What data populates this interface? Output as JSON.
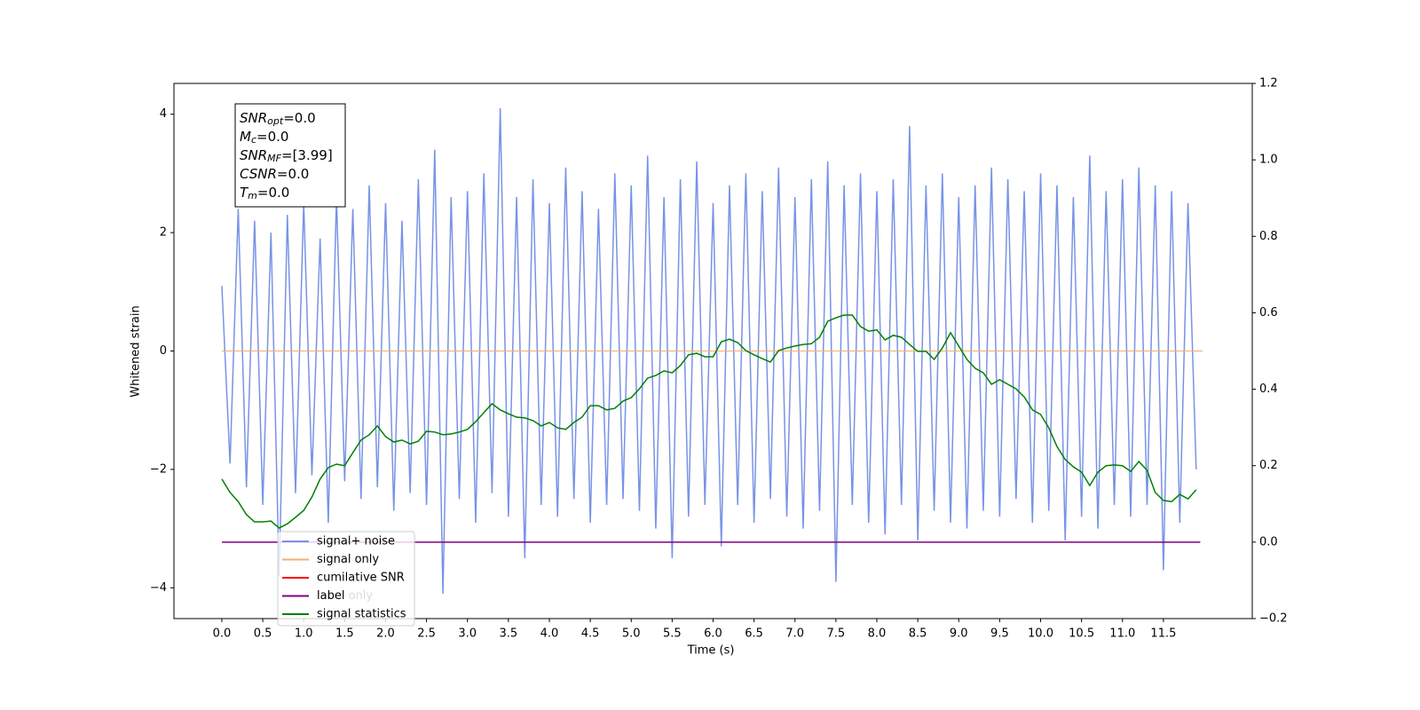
{
  "chart_data": {
    "type": "line",
    "xlabel": "Time (s)",
    "ylabel": "Whitened strain",
    "xlim": [
      -0.585,
      12.585
    ],
    "ylim": [
      -4.52,
      4.52
    ],
    "y2lim": [
      -0.2,
      1.2
    ],
    "xticks": [
      {
        "value": 0,
        "label": "0.0"
      },
      0.5,
      {
        "value": 1,
        "label": "1.0"
      },
      1.5,
      {
        "value": 2,
        "label": "2.0"
      },
      2.5,
      {
        "value": 3,
        "label": "3.0"
      },
      3.5,
      {
        "value": 4,
        "label": "4.0"
      },
      4.5,
      {
        "value": 5,
        "label": "5.0"
      },
      5.5,
      {
        "value": 6,
        "label": "6.0"
      },
      6.5,
      {
        "value": 7,
        "label": "7.0"
      },
      7.5,
      {
        "value": 8,
        "label": "8.0"
      },
      8.5,
      {
        "value": 9,
        "label": "9.0"
      },
      9.5,
      {
        "value": 10,
        "label": "10.0"
      },
      10.5,
      {
        "value": 11,
        "label": "11.0"
      },
      11.5
    ],
    "yticks": [
      {
        "value": -4,
        "label": "−4"
      },
      {
        "value": -2,
        "label": "−2"
      },
      0,
      2,
      4
    ],
    "y2ticks": [
      {
        "value": -0.2,
        "label": "−0.2"
      },
      {
        "value": 0,
        "label": "0.0"
      },
      0.2,
      0.4,
      0.6,
      0.8,
      {
        "value": 1,
        "label": "1.0"
      },
      1.2
    ],
    "legend": "lower left",
    "annotation": [
      {
        "text": "SNR",
        "sub": "opt",
        "rest": "=0.0"
      },
      {
        "text": "M",
        "sub": "c",
        "rest": "=0.0"
      },
      {
        "text": "SNR",
        "sub": "MF",
        "rest": "=[3.99]"
      },
      {
        "text": "CSNR",
        "rest": "=0.0"
      },
      {
        "text": "T",
        "sub": "m",
        "rest": "=0.0"
      }
    ],
    "x": [
      0,
      0.1,
      0.2,
      0.3,
      0.4,
      0.5,
      0.6,
      0.7,
      0.8,
      0.9,
      1,
      1.1,
      1.2,
      1.3,
      1.4,
      1.5,
      1.6,
      1.7,
      1.8,
      1.9,
      2,
      2.1,
      2.2,
      2.3,
      2.4,
      2.5,
      2.6,
      2.7,
      2.8,
      2.9,
      3,
      3.1,
      3.2,
      3.3,
      3.4,
      3.5,
      3.6,
      3.7,
      3.8,
      3.9,
      4,
      4.1,
      4.2,
      4.3,
      4.4,
      4.5,
      4.6,
      4.7,
      4.8,
      4.9,
      5,
      5.1,
      5.2,
      5.3,
      5.4,
      5.5,
      5.6,
      5.7,
      5.8,
      5.9,
      6,
      6.1,
      6.2,
      6.3,
      6.4,
      6.5,
      6.6,
      6.7,
      6.8,
      6.9,
      7,
      7.1,
      7.2,
      7.3,
      7.4,
      7.5,
      7.6,
      7.7,
      7.8,
      7.9,
      8,
      8.1,
      8.2,
      8.3,
      8.4,
      8.5,
      8.6,
      8.7,
      8.8,
      8.9,
      9,
      9.1,
      9.2,
      9.3,
      9.4,
      9.5,
      9.6,
      9.7,
      9.8,
      9.9,
      10,
      10.1,
      10.2,
      10.3,
      10.4,
      10.5,
      10.6,
      10.7,
      10.8,
      10.9,
      11,
      11.1,
      11.2,
      11.3,
      11.4,
      11.5,
      11.6,
      11.7,
      11.8,
      11.9
    ],
    "series": [
      {
        "name": "signal+ noise",
        "color": "#7893e6",
        "values": [
          1.1,
          -1.9,
          2.4,
          -2.3,
          2.2,
          -2.6,
          2.0,
          -3.8,
          2.3,
          -2.4,
          2.5,
          -2.1,
          1.9,
          -2.9,
          2.6,
          -2.2,
          2.4,
          -2.5,
          2.8,
          -2.3,
          2.5,
          -2.7,
          2.2,
          -2.4,
          2.9,
          -2.6,
          3.4,
          -4.1,
          2.6,
          -2.5,
          2.7,
          -2.9,
          3.0,
          -2.4,
          4.1,
          -2.8,
          2.6,
          -3.5,
          2.9,
          -2.6,
          2.5,
          -2.8,
          3.1,
          -2.5,
          2.7,
          -2.9,
          2.4,
          -2.6,
          3.0,
          -2.5,
          2.8,
          -2.7,
          3.3,
          -3.0,
          2.6,
          -3.5,
          2.9,
          -2.8,
          3.2,
          -2.6,
          2.5,
          -3.3,
          2.8,
          -2.6,
          3.0,
          -2.9,
          2.7,
          -2.5,
          3.1,
          -2.8,
          2.6,
          -3.0,
          2.9,
          -2.7,
          3.2,
          -3.9,
          2.8,
          -2.6,
          3.0,
          -2.9,
          2.7,
          -3.1,
          2.9,
          -2.6,
          3.8,
          -3.2,
          2.8,
          -2.7,
          3.0,
          -2.9,
          2.6,
          -3.0,
          2.8,
          -2.7,
          3.1,
          -2.8,
          2.9,
          -2.5,
          2.7,
          -2.9,
          3.0,
          -2.7,
          2.8,
          -3.2,
          2.6,
          -2.8,
          3.3,
          -3.0,
          2.7,
          -2.6,
          2.9,
          -2.8,
          3.1,
          -2.6,
          2.8,
          -3.7,
          2.7,
          -2.9,
          2.5,
          -2.0
        ]
      },
      {
        "name": "signal only",
        "color": "#f2b06a",
        "x": [
          0,
          11.98
        ],
        "values": [
          0,
          0
        ]
      },
      {
        "name": "cumilative SNR",
        "color": "red",
        "x": [],
        "values": []
      },
      {
        "name": "label",
        "color": "purple",
        "axis": "y2",
        "x": [
          0,
          11.95
        ],
        "values": [
          0,
          0
        ]
      },
      {
        "name": "label only",
        "color": "#d9b3d9",
        "axis": "y2",
        "x": [],
        "values": []
      },
      {
        "name": "signal statistics",
        "color": "green",
        "axis": "y2",
        "values": [
          0.165,
          0.13,
          0.106,
          0.072,
          0.053,
          0.053,
          0.055,
          0.037,
          0.048,
          0.065,
          0.083,
          0.118,
          0.165,
          0.195,
          0.204,
          0.2,
          0.234,
          0.267,
          0.281,
          0.304,
          0.276,
          0.262,
          0.267,
          0.257,
          0.264,
          0.29,
          0.288,
          0.281,
          0.283,
          0.288,
          0.295,
          0.315,
          0.339,
          0.362,
          0.346,
          0.336,
          0.327,
          0.325,
          0.318,
          0.304,
          0.313,
          0.299,
          0.295,
          0.313,
          0.327,
          0.357,
          0.357,
          0.346,
          0.35,
          0.369,
          0.378,
          0.401,
          0.429,
          0.436,
          0.448,
          0.443,
          0.462,
          0.49,
          0.494,
          0.485,
          0.485,
          0.524,
          0.531,
          0.522,
          0.501,
          0.49,
          0.48,
          0.471,
          0.501,
          0.508,
          0.513,
          0.517,
          0.519,
          0.536,
          0.578,
          0.587,
          0.594,
          0.594,
          0.564,
          0.552,
          0.555,
          0.529,
          0.541,
          0.536,
          0.517,
          0.499,
          0.499,
          0.478,
          0.508,
          0.548,
          0.513,
          0.478,
          0.455,
          0.443,
          0.413,
          0.425,
          0.413,
          0.401,
          0.38,
          0.346,
          0.334,
          0.299,
          0.25,
          0.216,
          0.197,
          0.183,
          0.148,
          0.183,
          0.2,
          0.202,
          0.2,
          0.185,
          0.211,
          0.188,
          0.13,
          0.109,
          0.106,
          0.125,
          0.113,
          0.137
        ]
      }
    ]
  }
}
